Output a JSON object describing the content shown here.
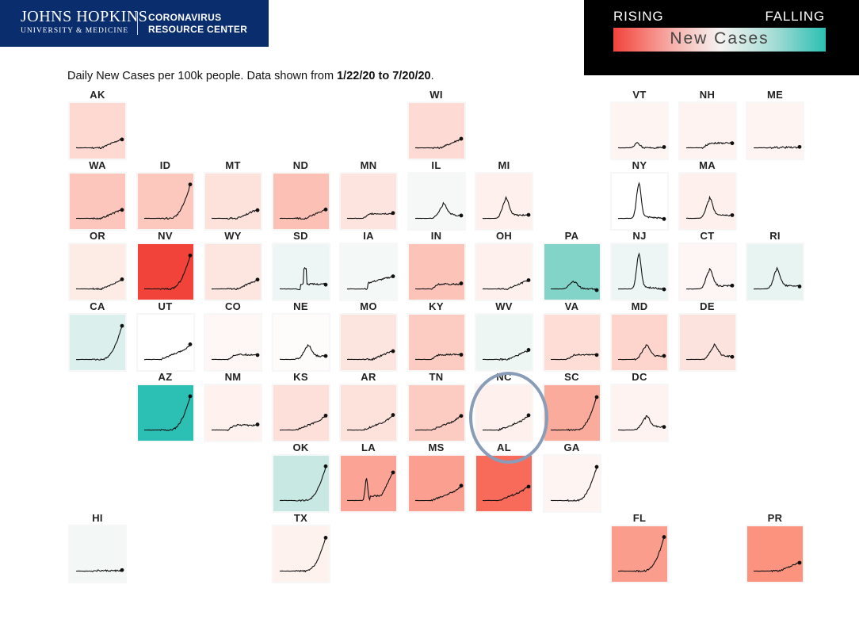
{
  "header": {
    "logo_main": "JOHNS HOPKINS",
    "logo_sub": "UNIVERSITY & MEDICINE",
    "logo_right_1": "CORONAVIRUS",
    "logo_right_2": "RESOURCE CENTER"
  },
  "legend": {
    "rising": "RISING",
    "falling": "FALLING",
    "label": "New Cases",
    "colors": {
      "rising": "#f2433a",
      "neutral": "#f5f2f0",
      "falling": "#2cbfb3"
    }
  },
  "subtitle": {
    "prefix": "Daily New Cases per 100k people. Data shown from ",
    "range": "1/22/20 to 7/20/20",
    "suffix": "."
  },
  "chart_data": {
    "type": "line",
    "layout": "tile-grid-map",
    "x": [
      "1/22/20",
      "7/20/20"
    ],
    "highlighted": "NC",
    "series": [
      {
        "name": "AK",
        "row": 0,
        "col": 0,
        "color": "#fdd9d2",
        "shape": "late"
      },
      {
        "name": "WI",
        "row": 0,
        "col": 5,
        "color": "#fddad3",
        "shape": "late"
      },
      {
        "name": "VT",
        "row": 0,
        "col": 8,
        "color": "#fef5f3",
        "shape": "early"
      },
      {
        "name": "NH",
        "row": 0,
        "col": 9,
        "color": "#fef3f1",
        "shape": "plateau"
      },
      {
        "name": "ME",
        "row": 0,
        "col": 10,
        "color": "#fef4f2",
        "shape": "flat"
      },
      {
        "name": "WA",
        "row": 1,
        "col": 0,
        "color": "#fcc6bc",
        "shape": "late"
      },
      {
        "name": "ID",
        "row": 1,
        "col": 1,
        "color": "#fcc8be",
        "shape": "surge"
      },
      {
        "name": "MT",
        "row": 1,
        "col": 2,
        "color": "#fde2dc",
        "shape": "late"
      },
      {
        "name": "ND",
        "row": 1,
        "col": 3,
        "color": "#fcc0b5",
        "shape": "late"
      },
      {
        "name": "MN",
        "row": 1,
        "col": 4,
        "color": "#fde4de",
        "shape": "plateau"
      },
      {
        "name": "IL",
        "row": 1,
        "col": 5,
        "color": "#f5f8f7",
        "shape": "mid-peak"
      },
      {
        "name": "MI",
        "row": 1,
        "col": 6,
        "color": "#fef0ec",
        "shape": "early-peak"
      },
      {
        "name": "NY",
        "row": 1,
        "col": 8,
        "color": "#ffffff",
        "shape": "big-early-peak"
      },
      {
        "name": "MA",
        "row": 1,
        "col": 9,
        "color": "#fef0ed",
        "shape": "early-peak"
      },
      {
        "name": "OR",
        "row": 2,
        "col": 0,
        "color": "#fdebe6",
        "shape": "late"
      },
      {
        "name": "NV",
        "row": 2,
        "col": 1,
        "color": "#f2433a",
        "shape": "surge"
      },
      {
        "name": "WY",
        "row": 2,
        "col": 2,
        "color": "#fde6e0",
        "shape": "late"
      },
      {
        "name": "SD",
        "row": 2,
        "col": 3,
        "color": "#edf6f4",
        "shape": "spike"
      },
      {
        "name": "IA",
        "row": 2,
        "col": 4,
        "color": "#f4f8f6",
        "shape": "plateau-rise"
      },
      {
        "name": "IN",
        "row": 2,
        "col": 5,
        "color": "#fcc4b9",
        "shape": "plateau"
      },
      {
        "name": "OH",
        "row": 2,
        "col": 6,
        "color": "#fef0ec",
        "shape": "late"
      },
      {
        "name": "PA",
        "row": 2,
        "col": 7,
        "color": "#82d3c8",
        "shape": "pa"
      },
      {
        "name": "NJ",
        "row": 2,
        "col": 8,
        "color": "#edf6f4",
        "shape": "big-early-peak"
      },
      {
        "name": "CT",
        "row": 2,
        "col": 9,
        "color": "#fef6f4",
        "shape": "early-peak"
      },
      {
        "name": "RI",
        "row": 2,
        "col": 10,
        "color": "#e8f4f1",
        "shape": "early-peak"
      },
      {
        "name": "CA",
        "row": 3,
        "col": 0,
        "color": "#dbf0ec",
        "shape": "surge"
      },
      {
        "name": "UT",
        "row": 3,
        "col": 1,
        "color": "#ffffff",
        "shape": "ramp"
      },
      {
        "name": "CO",
        "row": 3,
        "col": 2,
        "color": "#fef7f5",
        "shape": "plateau"
      },
      {
        "name": "NE",
        "row": 3,
        "col": 3,
        "color": "#fdfcfb",
        "shape": "mid-peak"
      },
      {
        "name": "MO",
        "row": 3,
        "col": 4,
        "color": "#fde5df",
        "shape": "late"
      },
      {
        "name": "KY",
        "row": 3,
        "col": 5,
        "color": "#fcccc3",
        "shape": "plateau"
      },
      {
        "name": "WV",
        "row": 3,
        "col": 6,
        "color": "#eef6f4",
        "shape": "late"
      },
      {
        "name": "VA",
        "row": 3,
        "col": 7,
        "color": "#fdddd6",
        "shape": "plateau"
      },
      {
        "name": "MD",
        "row": 3,
        "col": 8,
        "color": "#fdd5cd",
        "shape": "mid-peak"
      },
      {
        "name": "DE",
        "row": 3,
        "col": 9,
        "color": "#fde3dd",
        "shape": "mid-peak"
      },
      {
        "name": "AZ",
        "row": 4,
        "col": 1,
        "color": "#2cbfb3",
        "shape": "surge"
      },
      {
        "name": "NM",
        "row": 4,
        "col": 2,
        "color": "#fef1ee",
        "shape": "plateau"
      },
      {
        "name": "KS",
        "row": 4,
        "col": 3,
        "color": "#fde0d9",
        "shape": "ramp"
      },
      {
        "name": "AR",
        "row": 4,
        "col": 4,
        "color": "#fde1db",
        "shape": "ramp"
      },
      {
        "name": "TN",
        "row": 4,
        "col": 5,
        "color": "#fcccc3",
        "shape": "ramp"
      },
      {
        "name": "NC",
        "row": 4,
        "col": 6,
        "color": "#fef0ec",
        "shape": "ramp"
      },
      {
        "name": "SC",
        "row": 4,
        "col": 7,
        "color": "#fbab9c",
        "shape": "surge"
      },
      {
        "name": "DC",
        "row": 4,
        "col": 8,
        "color": "#fef3f0",
        "shape": "mid-peak"
      },
      {
        "name": "OK",
        "row": 5,
        "col": 3,
        "color": "#c8e9e3",
        "shape": "surge"
      },
      {
        "name": "LA",
        "row": 5,
        "col": 4,
        "color": "#fba496",
        "shape": "la"
      },
      {
        "name": "MS",
        "row": 5,
        "col": 5,
        "color": "#fba090",
        "shape": "ramp"
      },
      {
        "name": "AL",
        "row": 5,
        "col": 6,
        "color": "#f86a5a",
        "shape": "ramp"
      },
      {
        "name": "GA",
        "row": 5,
        "col": 7,
        "color": "#fef4f2",
        "shape": "surge"
      },
      {
        "name": "HI",
        "row": 6,
        "col": 0,
        "color": "#f3f8f7",
        "shape": "flat"
      },
      {
        "name": "TX",
        "row": 6,
        "col": 3,
        "color": "#fef2ef",
        "shape": "surge"
      },
      {
        "name": "FL",
        "row": 6,
        "col": 8,
        "color": "#fb9d8d",
        "shape": "surge"
      },
      {
        "name": "PR",
        "row": 6,
        "col": 10,
        "color": "#fb937f",
        "shape": "late"
      }
    ]
  }
}
